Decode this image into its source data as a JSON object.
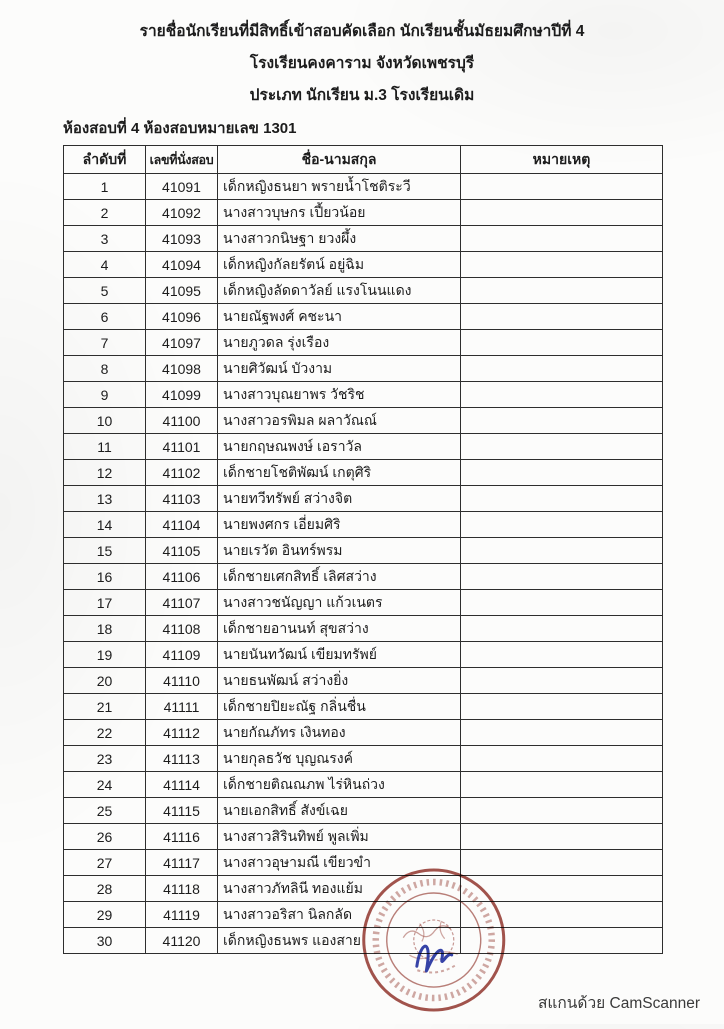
{
  "document": {
    "title_lines": [
      "รายชื่อนักเรียนที่มีสิทธิ์เข้าสอบคัดเลือก นักเรียนชั้นมัธยมศึกษาปีที่ 4",
      "โรงเรียนคงคาราม จังหวัดเพชรบุรี",
      "ประเภท นักเรียน ม.3 โรงเรียนเดิม"
    ],
    "room_heading": "ห้องสอบที่ 4 ห้องสอบหมายเลข 1301"
  },
  "table": {
    "columns": [
      "ลำดับที่",
      "เลขที่นั่งสอบ",
      "ชื่อ-นามสกุล",
      "หมายเหตุ"
    ],
    "rows": [
      {
        "no": "1",
        "seat": "41091",
        "name": "เด็กหญิงธนยา  พรายน้ำโชติระวี",
        "remark": ""
      },
      {
        "no": "2",
        "seat": "41092",
        "name": "นางสาวบุษกร  เปี้ยวน้อย",
        "remark": ""
      },
      {
        "no": "3",
        "seat": "41093",
        "name": "นางสาวกนิษฐา  ยวงผึ้ง",
        "remark": ""
      },
      {
        "no": "4",
        "seat": "41094",
        "name": "เด็กหญิงกัลยรัตน์  อยู่ฉิม",
        "remark": ""
      },
      {
        "no": "5",
        "seat": "41095",
        "name": "เด็กหญิงลัดดาวัลย์  แรงโนนแดง",
        "remark": ""
      },
      {
        "no": "6",
        "seat": "41096",
        "name": "นายณัฐพงศ์  คชะนา",
        "remark": ""
      },
      {
        "no": "7",
        "seat": "41097",
        "name": "นายภูวดล  รุ่งเรือง",
        "remark": ""
      },
      {
        "no": "8",
        "seat": "41098",
        "name": "นายศิวัฒน์  บัวงาม",
        "remark": ""
      },
      {
        "no": "9",
        "seat": "41099",
        "name": "นางสาวบุณยาพร  วัชริช",
        "remark": ""
      },
      {
        "no": "10",
        "seat": "41100",
        "name": "นางสาวอรพิมล  ผลาวัณณ์",
        "remark": ""
      },
      {
        "no": "11",
        "seat": "41101",
        "name": "นายกฤษณพงษ์  เอราวัล",
        "remark": ""
      },
      {
        "no": "12",
        "seat": "41102",
        "name": "เด็กชายโชติพัฒน์  เกตุศิริ",
        "remark": ""
      },
      {
        "no": "13",
        "seat": "41103",
        "name": "นายทวีทรัพย์  สว่างจิต",
        "remark": ""
      },
      {
        "no": "14",
        "seat": "41104",
        "name": "นายพงศกร  เอี่ยมศิริ",
        "remark": ""
      },
      {
        "no": "15",
        "seat": "41105",
        "name": "นายเรวัต  อินทร์พรม",
        "remark": ""
      },
      {
        "no": "16",
        "seat": "41106",
        "name": "เด็กชายเศกสิทธิ์  เลิศสว่าง",
        "remark": ""
      },
      {
        "no": "17",
        "seat": "41107",
        "name": "นางสาวชนัญญา  แก้วเนตร",
        "remark": ""
      },
      {
        "no": "18",
        "seat": "41108",
        "name": "เด็กชายอานนท์  สุขสว่าง",
        "remark": ""
      },
      {
        "no": "19",
        "seat": "41109",
        "name": "นายนันทวัฒน์  เขียมทรัพย์",
        "remark": ""
      },
      {
        "no": "20",
        "seat": "41110",
        "name": "นายธนพัฒน์  สว่างยิ่ง",
        "remark": ""
      },
      {
        "no": "21",
        "seat": "41111",
        "name": "เด็กชายปิยะณัฐ  กลิ่นชื่น",
        "remark": ""
      },
      {
        "no": "22",
        "seat": "41112",
        "name": "นายกัณภัทร  เงินทอง",
        "remark": ""
      },
      {
        "no": "23",
        "seat": "41113",
        "name": "นายกุลธวัช  บุญณรงค์",
        "remark": ""
      },
      {
        "no": "24",
        "seat": "41114",
        "name": "เด็กชายติณณภพ  ไร่หินถ่วง",
        "remark": ""
      },
      {
        "no": "25",
        "seat": "41115",
        "name": "นายเอกสิทธิ์  สังข์เฉย",
        "remark": ""
      },
      {
        "no": "26",
        "seat": "41116",
        "name": "นางสาวสิรินทิพย์  พูลเพิ่ม",
        "remark": ""
      },
      {
        "no": "27",
        "seat": "41117",
        "name": "นางสาวอุษามณี  เขียวขำ",
        "remark": ""
      },
      {
        "no": "28",
        "seat": "41118",
        "name": "นางสาวภัทลินี  ทองแย้ม",
        "remark": ""
      },
      {
        "no": "29",
        "seat": "41119",
        "name": "นางสาวอริสา  นิลกลัด",
        "remark": ""
      },
      {
        "no": "30",
        "seat": "41120",
        "name": "เด็กหญิงธนพร  แองสาย",
        "remark": ""
      }
    ]
  },
  "footer": {
    "scan_credit": "สแกนด้วย CamScanner"
  },
  "colors": {
    "stamp_red": "#8f2f26",
    "signature_blue": "#2b3aa5",
    "table_border": "#2e2e2e"
  }
}
